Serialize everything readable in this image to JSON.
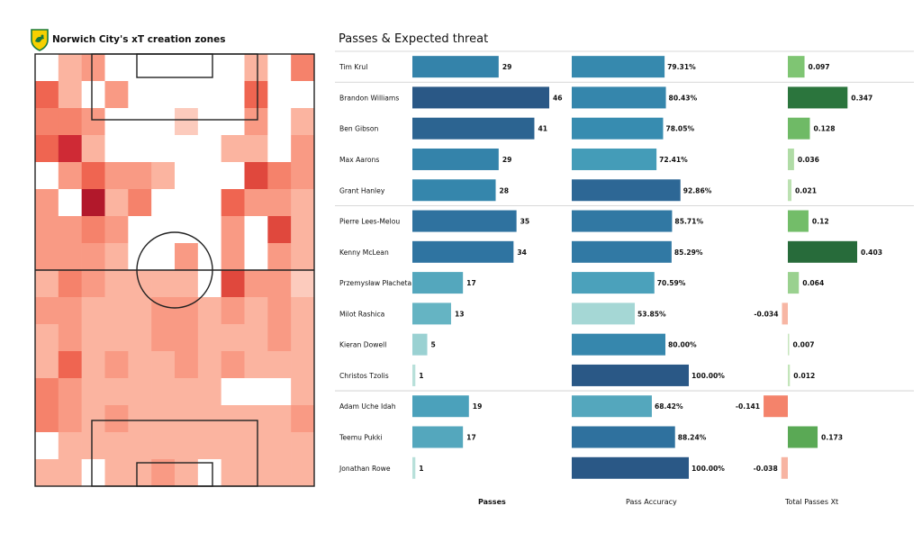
{
  "left_title": "Norwich City's xT creation zones",
  "right_title": "Passes & Expected threat",
  "footer": {
    "passes": "Passes",
    "accuracy": "Pass Accuracy",
    "xt": "Total Passes Xt"
  },
  "colors": {
    "heat_high": "#b2182b",
    "heat_low": "#fbe6e1",
    "xt_pos": "#2e7d40",
    "xt_neg": "#f4836b",
    "blue_dark": "#2a5886",
    "blue_light": "#bfe4dc"
  },
  "chart_data": [
    {
      "type": "heatmap",
      "title": "Norwich City's xT creation zones",
      "rows": 16,
      "cols": 12,
      "values": [
        [
          0,
          3,
          4,
          0,
          0,
          0,
          0,
          0,
          0,
          3,
          0,
          5
        ],
        [
          6,
          3,
          0,
          4,
          0,
          0,
          0,
          0,
          0,
          6,
          0,
          0
        ],
        [
          5,
          5,
          4,
          0,
          0,
          0,
          2,
          0,
          0,
          4,
          0,
          3
        ],
        [
          6,
          8,
          3,
          0,
          0,
          0,
          0,
          0,
          3,
          3,
          0,
          4
        ],
        [
          0,
          4,
          6,
          4,
          4,
          3,
          0,
          0,
          0,
          7,
          5,
          4
        ],
        [
          4,
          0,
          9,
          3,
          5,
          0,
          0,
          0,
          6,
          4,
          4,
          3
        ],
        [
          4,
          4,
          5,
          4,
          0,
          0,
          0,
          0,
          4,
          0,
          7,
          3
        ],
        [
          4,
          4,
          4,
          3,
          0,
          0,
          4,
          0,
          4,
          0,
          4,
          3
        ],
        [
          3,
          5,
          4,
          3,
          3,
          3,
          3,
          0,
          7,
          4,
          4,
          2
        ],
        [
          4,
          4,
          3,
          3,
          3,
          4,
          4,
          3,
          4,
          3,
          4,
          3
        ],
        [
          3,
          4,
          3,
          3,
          3,
          4,
          4,
          3,
          3,
          3,
          4,
          3
        ],
        [
          3,
          6,
          3,
          4,
          3,
          3,
          4,
          3,
          4,
          3,
          3,
          3
        ],
        [
          5,
          4,
          3,
          3,
          3,
          3,
          3,
          3,
          0,
          0,
          0,
          3
        ],
        [
          5,
          4,
          3,
          4,
          3,
          3,
          3,
          3,
          3,
          3,
          3,
          4
        ],
        [
          0,
          3,
          3,
          3,
          3,
          3,
          3,
          3,
          3,
          3,
          3,
          3
        ],
        [
          3,
          3,
          0,
          3,
          3,
          4,
          3,
          0,
          3,
          3,
          3,
          3
        ]
      ]
    },
    {
      "type": "bar",
      "title": "Passes & Expected threat",
      "categories": [
        "Tim Krul",
        "Brandon Williams",
        "Ben Gibson",
        "Max Aarons",
        "Grant Hanley",
        "Pierre Lees-Melou",
        "Kenny McLean",
        "Przemysław Płacheta",
        "Milot Rashica",
        "Kieran Dowell",
        "Christos Tzolis",
        "Adam Uche Idah",
        "Teemu Pukki",
        "Jonathan Rowe"
      ],
      "groups": [
        1,
        4,
        4
      ],
      "series": [
        {
          "name": "Passes",
          "values": [
            29,
            46,
            41,
            29,
            28,
            35,
            34,
            17,
            13,
            5,
            1,
            19,
            17,
            1
          ],
          "labels": [
            "29",
            "46",
            "41",
            "29",
            "28",
            "35",
            "34",
            "17",
            "13",
            "5",
            "1",
            "19",
            "17",
            "1"
          ]
        },
        {
          "name": "Pass Accuracy",
          "values": [
            79.31,
            80.43,
            78.05,
            72.41,
            92.86,
            85.71,
            85.29,
            70.59,
            53.85,
            80.0,
            100.0,
            68.42,
            88.24,
            100.0
          ],
          "labels": [
            "79.31%",
            "80.43%",
            "78.05%",
            "72.41%",
            "92.86%",
            "85.71%",
            "85.29%",
            "70.59%",
            "53.85%",
            "80.00%",
            "100.00%",
            "68.42%",
            "88.24%",
            "100.00%"
          ]
        },
        {
          "name": "Total Passes Xt",
          "values": [
            0.097,
            0.347,
            0.128,
            0.036,
            0.021,
            0.12,
            0.403,
            0.064,
            -0.034,
            0.007,
            0.012,
            -0.141,
            0.173,
            -0.038
          ],
          "labels": [
            "0.097",
            "0.347",
            "0.128",
            "0.036",
            "0.021",
            "0.12",
            "0.403",
            "0.064",
            "-0.034",
            "0.007",
            "0.012",
            "-0.141",
            "0.173",
            "-0.038"
          ]
        }
      ]
    }
  ]
}
